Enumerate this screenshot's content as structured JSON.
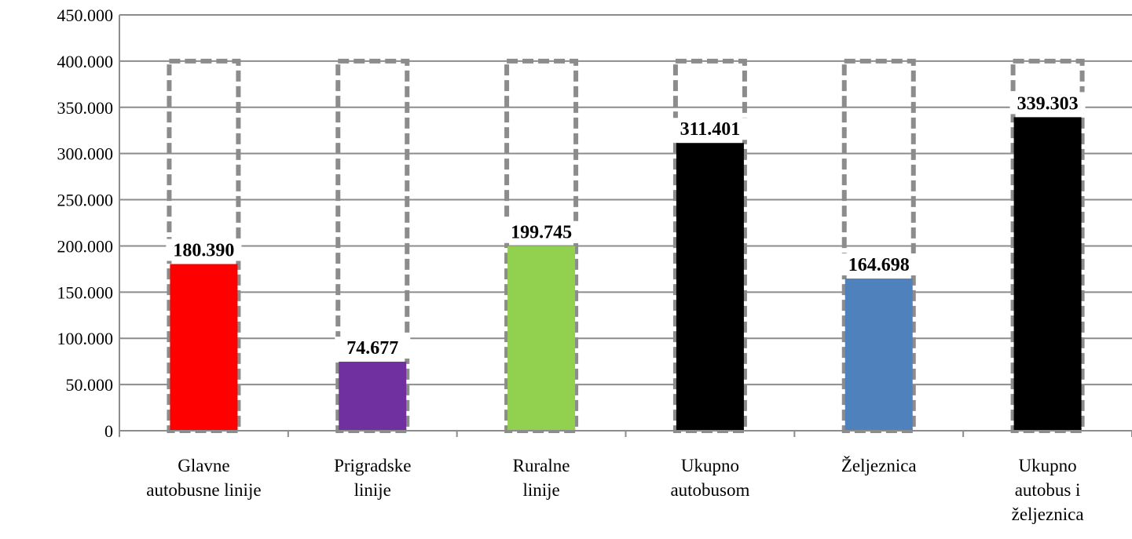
{
  "chart_data": {
    "type": "bar",
    "categories": [
      [
        "Glavne",
        "autobusne linije"
      ],
      [
        "Prigradske",
        "linije"
      ],
      [
        "Ruralne",
        "linije"
      ],
      [
        "Ukupno",
        "autobusom"
      ],
      [
        "Željeznica"
      ],
      [
        "Ukupno",
        "autobus i",
        "željeznica"
      ]
    ],
    "series": [
      {
        "values": [
          180390,
          74677,
          199745,
          311401,
          164698,
          339303
        ],
        "value_labels": [
          "180.390",
          "74.677",
          "199.745",
          "311.401",
          "164.698",
          "339.303"
        ],
        "colors": [
          "#ff0000",
          "#7030a0",
          "#92d050",
          "#000000",
          "#4f81bd",
          "#000000"
        ]
      },
      {
        "style": "dashed-outline-capacity",
        "values": [
          400000,
          400000,
          400000,
          400000,
          400000,
          400000
        ],
        "color": "#8c8c8c"
      }
    ],
    "ylim": [
      0,
      450000
    ],
    "yticks": [
      0,
      50000,
      100000,
      150000,
      200000,
      250000,
      300000,
      350000,
      400000,
      450000
    ],
    "ytick_labels": [
      "0",
      "50.000",
      "100.000",
      "150.000",
      "200.000",
      "250.000",
      "300.000",
      "350.000",
      "400.000",
      "450.000"
    ],
    "grid": true,
    "legend": "none"
  }
}
